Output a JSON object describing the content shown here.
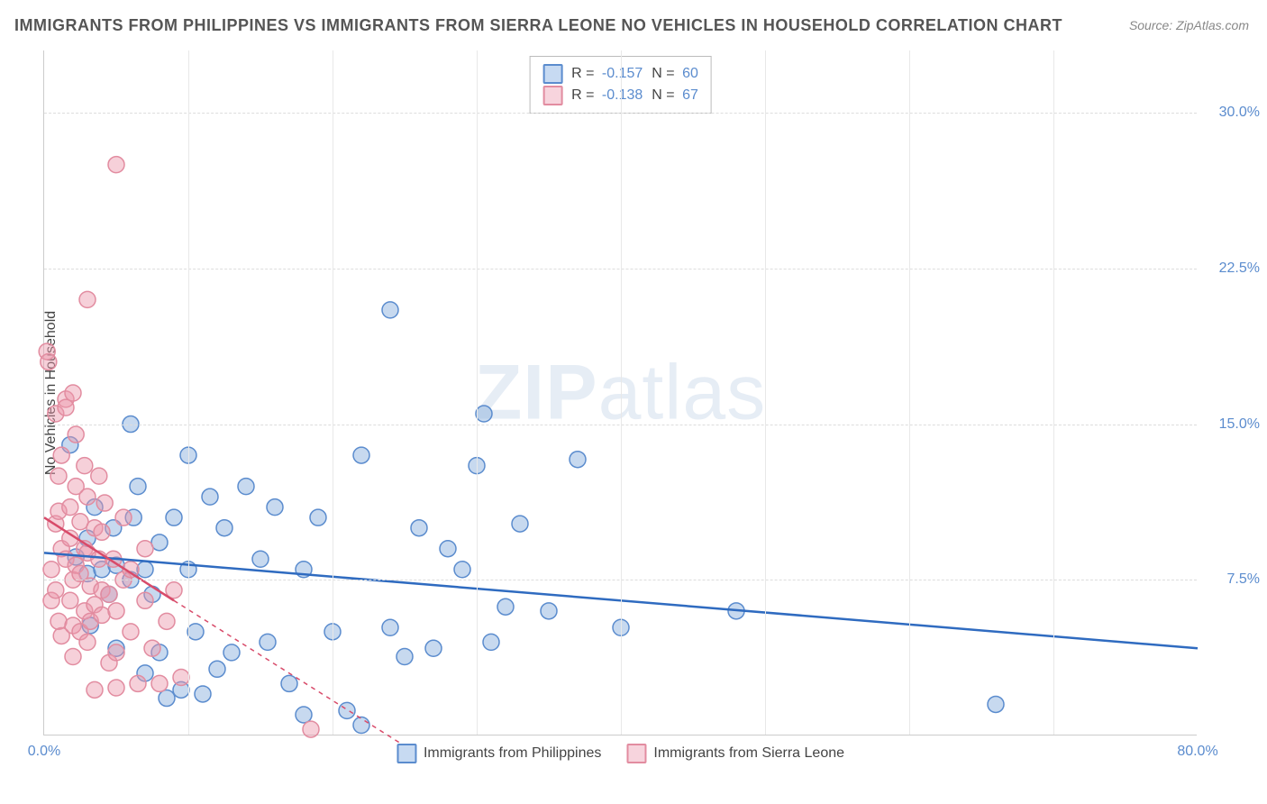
{
  "title": "IMMIGRANTS FROM PHILIPPINES VS IMMIGRANTS FROM SIERRA LEONE NO VEHICLES IN HOUSEHOLD CORRELATION CHART",
  "source": "Source: ZipAtlas.com",
  "ylabel": "No Vehicles in Household",
  "watermark_bold": "ZIP",
  "watermark_thin": "atlas",
  "xlim": [
    0,
    80
  ],
  "ylim": [
    0,
    33
  ],
  "xticks": [
    {
      "v": 0,
      "label": "0.0%"
    },
    {
      "v": 80,
      "label": "80.0%"
    }
  ],
  "yticks": [
    {
      "v": 7.5,
      "label": "7.5%"
    },
    {
      "v": 15.0,
      "label": "15.0%"
    },
    {
      "v": 22.5,
      "label": "22.5%"
    },
    {
      "v": 30.0,
      "label": "30.0%"
    }
  ],
  "vgrid": [
    10,
    20,
    30,
    40,
    50,
    60,
    70
  ],
  "legend_top": {
    "row1": {
      "swatch_fill": "#c7daf2",
      "swatch_border": "#5b8cce",
      "r_label": "R = ",
      "r": "-0.157",
      "n_label": "N = ",
      "n": "60"
    },
    "row2": {
      "swatch_fill": "#f7d4dd",
      "swatch_border": "#e28ca0",
      "r_label": "R = ",
      "r": "-0.138",
      "n_label": "N = ",
      "n": "67"
    }
  },
  "legend_bottom": {
    "a": {
      "swatch_fill": "#c7daf2",
      "swatch_border": "#5b8cce",
      "label": "Immigrants from Philippines"
    },
    "b": {
      "swatch_fill": "#f7d4dd",
      "swatch_border": "#e28ca0",
      "label": "Immigrants from Sierra Leone"
    }
  },
  "marker_radius": 9,
  "line_width": 2.5,
  "series": {
    "philippines": {
      "color_fill": "rgba(130,170,220,0.45)",
      "color_stroke": "#5b8cce",
      "trend": {
        "x1": 0,
        "y1": 8.8,
        "x2": 80,
        "y2": 4.2,
        "color": "#2f6bc0",
        "dash": "none",
        "extrap_dash": "none"
      },
      "points": [
        [
          1.8,
          14.0
        ],
        [
          2.2,
          8.6
        ],
        [
          3.0,
          9.5
        ],
        [
          3.0,
          7.8
        ],
        [
          3.2,
          5.3
        ],
        [
          3.5,
          11.0
        ],
        [
          4.0,
          8.0
        ],
        [
          4.5,
          6.8
        ],
        [
          4.8,
          10.0
        ],
        [
          5.0,
          8.2
        ],
        [
          5.0,
          4.2
        ],
        [
          6.0,
          15.0
        ],
        [
          6.0,
          7.5
        ],
        [
          6.2,
          10.5
        ],
        [
          6.5,
          12.0
        ],
        [
          7.0,
          8.0
        ],
        [
          7.0,
          3.0
        ],
        [
          7.5,
          6.8
        ],
        [
          8.0,
          9.3
        ],
        [
          8.0,
          4.0
        ],
        [
          8.5,
          1.8
        ],
        [
          9.0,
          10.5
        ],
        [
          9.5,
          2.2
        ],
        [
          10.0,
          13.5
        ],
        [
          10.0,
          8.0
        ],
        [
          10.5,
          5.0
        ],
        [
          11.0,
          2.0
        ],
        [
          11.5,
          11.5
        ],
        [
          12.0,
          3.2
        ],
        [
          12.5,
          10.0
        ],
        [
          13.0,
          4.0
        ],
        [
          14.0,
          12.0
        ],
        [
          15.0,
          8.5
        ],
        [
          15.5,
          4.5
        ],
        [
          16.0,
          11.0
        ],
        [
          17.0,
          2.5
        ],
        [
          18.0,
          8.0
        ],
        [
          18.0,
          1.0
        ],
        [
          19.0,
          10.5
        ],
        [
          20.0,
          5.0
        ],
        [
          21.0,
          1.2
        ],
        [
          22.0,
          13.5
        ],
        [
          22.0,
          0.5
        ],
        [
          24.0,
          20.5
        ],
        [
          24.0,
          5.2
        ],
        [
          25.0,
          3.8
        ],
        [
          26.0,
          10.0
        ],
        [
          27.0,
          4.2
        ],
        [
          28.0,
          9.0
        ],
        [
          29.0,
          8.0
        ],
        [
          30.0,
          13.0
        ],
        [
          30.5,
          15.5
        ],
        [
          31.0,
          4.5
        ],
        [
          32.0,
          6.2
        ],
        [
          33.0,
          10.2
        ],
        [
          35.0,
          6.0
        ],
        [
          37.0,
          13.3
        ],
        [
          40.0,
          5.2
        ],
        [
          48.0,
          6.0
        ],
        [
          66.0,
          1.5
        ]
      ]
    },
    "sierraleone": {
      "color_fill": "rgba(235,150,170,0.45)",
      "color_stroke": "#e28ca0",
      "trend": {
        "x1": 0,
        "y1": 10.5,
        "x2": 9,
        "y2": 6.5,
        "color": "#d84b6a",
        "dash": "none",
        "extrap": {
          "x2": 25,
          "y2": -0.5,
          "dash": "5,5"
        }
      },
      "points": [
        [
          0.2,
          18.5
        ],
        [
          0.3,
          18.0
        ],
        [
          0.5,
          8.0
        ],
        [
          0.5,
          6.5
        ],
        [
          0.8,
          10.2
        ],
        [
          0.8,
          15.5
        ],
        [
          0.8,
          7.0
        ],
        [
          1.0,
          10.8
        ],
        [
          1.0,
          12.5
        ],
        [
          1.0,
          5.5
        ],
        [
          1.2,
          9.0
        ],
        [
          1.2,
          13.5
        ],
        [
          1.2,
          4.8
        ],
        [
          1.5,
          16.2
        ],
        [
          1.5,
          8.5
        ],
        [
          1.5,
          15.8
        ],
        [
          1.8,
          11.0
        ],
        [
          1.8,
          6.5
        ],
        [
          1.8,
          9.5
        ],
        [
          2.0,
          16.5
        ],
        [
          2.0,
          7.5
        ],
        [
          2.0,
          5.3
        ],
        [
          2.0,
          3.8
        ],
        [
          2.2,
          12.0
        ],
        [
          2.2,
          8.2
        ],
        [
          2.2,
          14.5
        ],
        [
          2.5,
          10.3
        ],
        [
          2.5,
          7.8
        ],
        [
          2.5,
          5.0
        ],
        [
          2.8,
          9.0
        ],
        [
          2.8,
          6.0
        ],
        [
          2.8,
          13.0
        ],
        [
          3.0,
          8.8
        ],
        [
          3.0,
          4.5
        ],
        [
          3.0,
          11.5
        ],
        [
          3.2,
          7.2
        ],
        [
          3.2,
          5.5
        ],
        [
          3.5,
          10.0
        ],
        [
          3.5,
          6.3
        ],
        [
          3.5,
          2.2
        ],
        [
          3.8,
          12.5
        ],
        [
          3.8,
          8.5
        ],
        [
          4.0,
          5.8
        ],
        [
          4.0,
          9.8
        ],
        [
          4.0,
          7.0
        ],
        [
          4.2,
          11.2
        ],
        [
          4.5,
          3.5
        ],
        [
          4.5,
          6.8
        ],
        [
          4.8,
          8.5
        ],
        [
          5.0,
          6.0
        ],
        [
          5.0,
          4.0
        ],
        [
          5.0,
          2.3
        ],
        [
          5.0,
          27.5
        ],
        [
          3.0,
          21.0
        ],
        [
          5.5,
          7.5
        ],
        [
          5.5,
          10.5
        ],
        [
          6.0,
          5.0
        ],
        [
          6.0,
          8.0
        ],
        [
          6.5,
          2.5
        ],
        [
          7.0,
          6.5
        ],
        [
          7.0,
          9.0
        ],
        [
          7.5,
          4.2
        ],
        [
          8.0,
          2.5
        ],
        [
          8.5,
          5.5
        ],
        [
          9.0,
          7.0
        ],
        [
          9.5,
          2.8
        ],
        [
          18.5,
          0.3
        ]
      ]
    }
  }
}
